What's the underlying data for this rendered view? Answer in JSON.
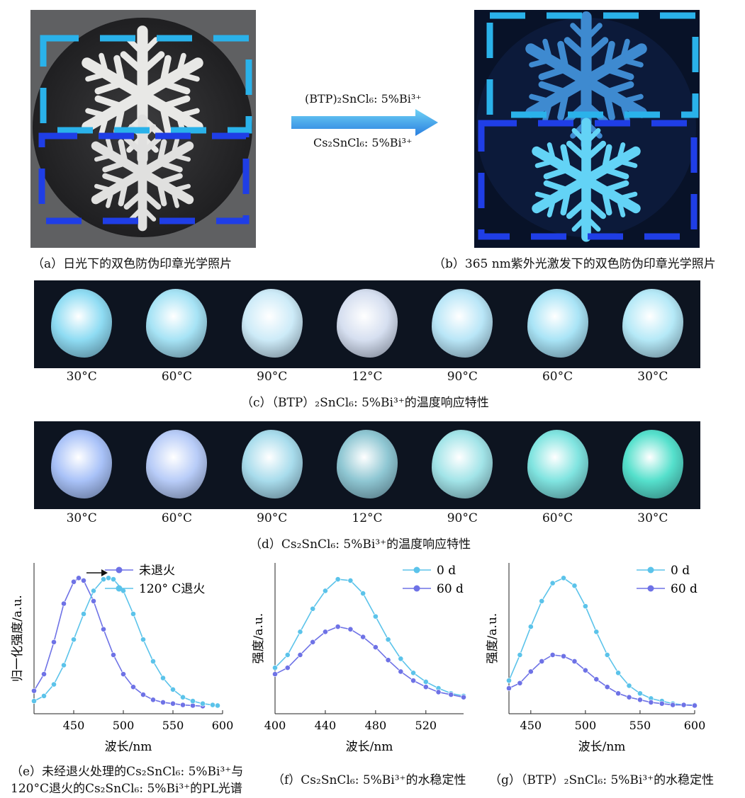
{
  "top": {
    "arrow_line1": "(BTP)₂SnCl₆: 5%Bi³⁺",
    "arrow_line2": "Cs₂SnCl₆: 5%Bi³⁺",
    "caption_a": "（a）日光下的双色防伪印章光学照片",
    "caption_b": "（b）365 nm紫外光激发下的双色防伪印章光学照片"
  },
  "strip_c": {
    "temps": [
      "30°C",
      "60°C",
      "90°C",
      "12°C",
      "90°C",
      "60°C",
      "30°C"
    ],
    "caption": "（c）（BTP）₂SnCl₆: 5%Bi³⁺的温度响应特性",
    "colors": [
      "#8fdcf3",
      "#a6e3f5",
      "#cdebf8",
      "#d6dff0",
      "#b9e6f7",
      "#a9e4f6",
      "#b5e9f7"
    ]
  },
  "strip_d": {
    "temps": [
      "30°C",
      "60°C",
      "90°C",
      "12°C",
      "90°C",
      "60°C",
      "30°C"
    ],
    "caption": "（d）Cs₂SnCl₆: 5%Bi³⁺的温度响应特性",
    "colors": [
      "#a9c2f8",
      "#b8ccf8",
      "#a8dcec",
      "#8fc7d3",
      "#a2e4e8",
      "#80e4e0",
      "#55e0cc"
    ]
  },
  "chart_data": [
    {
      "type": "line",
      "ylabel": "归一化强度/a.u.",
      "xlabel": "波长/nm",
      "xlim": [
        410,
        600
      ],
      "xticks": [
        "450",
        "500",
        "550",
        "600"
      ],
      "series": [
        {
          "name": "未退火",
          "color": "#6e72e6",
          "x": [
            410,
            420,
            430,
            440,
            450,
            455,
            460,
            470,
            480,
            490,
            500,
            510,
            520,
            530,
            540,
            550,
            560,
            570,
            580
          ],
          "y": [
            0.12,
            0.25,
            0.5,
            0.8,
            0.97,
            1.0,
            0.98,
            0.82,
            0.6,
            0.4,
            0.25,
            0.15,
            0.09,
            0.05,
            0.03,
            0.02,
            0.01,
            0.005,
            0
          ]
        },
        {
          "name": "120°  C退火",
          "color": "#5bc3ea",
          "x": [
            410,
            420,
            430,
            440,
            450,
            460,
            470,
            480,
            485,
            490,
            500,
            510,
            520,
            530,
            540,
            550,
            560,
            570,
            580,
            590,
            595
          ],
          "y": [
            0.04,
            0.08,
            0.17,
            0.32,
            0.52,
            0.72,
            0.9,
            0.99,
            1.0,
            0.99,
            0.9,
            0.72,
            0.52,
            0.35,
            0.22,
            0.13,
            0.07,
            0.04,
            0.02,
            0.01,
            0.005
          ]
        }
      ],
      "caption_line1": "（e）未经退火处理的Cs₂SnCl₆: 5%Bi³⁺与",
      "caption_line2": "120°C退火的Cs₂SnCl₆: 5%Bi³⁺的PL光谱"
    },
    {
      "type": "line",
      "ylabel": "强度/a.u.",
      "xlabel": "波长/nm",
      "xlim": [
        400,
        550
      ],
      "xticks": [
        "400",
        "440",
        "480",
        "520"
      ],
      "series": [
        {
          "name": "0 d",
          "color": "#5bc3ea",
          "x": [
            400,
            410,
            420,
            430,
            440,
            450,
            460,
            470,
            480,
            490,
            500,
            510,
            520,
            530,
            540,
            550
          ],
          "y": [
            0.3,
            0.4,
            0.58,
            0.76,
            0.9,
            0.99,
            0.98,
            0.88,
            0.7,
            0.52,
            0.37,
            0.26,
            0.19,
            0.14,
            0.1,
            0.08
          ]
        },
        {
          "name": "60 d",
          "color": "#6e72e6",
          "x": [
            400,
            410,
            420,
            430,
            440,
            450,
            460,
            470,
            480,
            490,
            500,
            510,
            520,
            530,
            540,
            550
          ],
          "y": [
            0.25,
            0.3,
            0.4,
            0.5,
            0.58,
            0.62,
            0.6,
            0.54,
            0.46,
            0.36,
            0.27,
            0.2,
            0.15,
            0.11,
            0.09,
            0.07
          ]
        }
      ],
      "caption": "（f）Cs₂SnCl₆: 5%Bi³⁺的水稳定性"
    },
    {
      "type": "line",
      "ylabel": "强度/a.u.",
      "xlabel": "波长/nm",
      "xlim": [
        430,
        600
      ],
      "xticks": [
        "450",
        "500",
        "550",
        "600"
      ],
      "series": [
        {
          "name": "0 d",
          "color": "#5bc3ea",
          "x": [
            430,
            440,
            450,
            460,
            470,
            480,
            490,
            500,
            510,
            520,
            530,
            540,
            550,
            560,
            570,
            580,
            590,
            600
          ],
          "y": [
            0.2,
            0.4,
            0.62,
            0.82,
            0.96,
            1.0,
            0.94,
            0.78,
            0.58,
            0.4,
            0.26,
            0.16,
            0.1,
            0.06,
            0.04,
            0.02,
            0.01,
            0.01
          ]
        },
        {
          "name": "60 d",
          "color": "#6e72e6",
          "x": [
            430,
            440,
            450,
            460,
            470,
            480,
            490,
            500,
            510,
            520,
            530,
            540,
            550,
            560,
            570,
            580,
            590,
            600
          ],
          "y": [
            0.14,
            0.18,
            0.27,
            0.35,
            0.4,
            0.39,
            0.35,
            0.28,
            0.21,
            0.15,
            0.1,
            0.07,
            0.05,
            0.03,
            0.02,
            0.01,
            0.01,
            0.005
          ]
        }
      ],
      "caption": "（g）（BTP）₂SnCl₆: 5%Bi³⁺的水稳定性"
    }
  ]
}
